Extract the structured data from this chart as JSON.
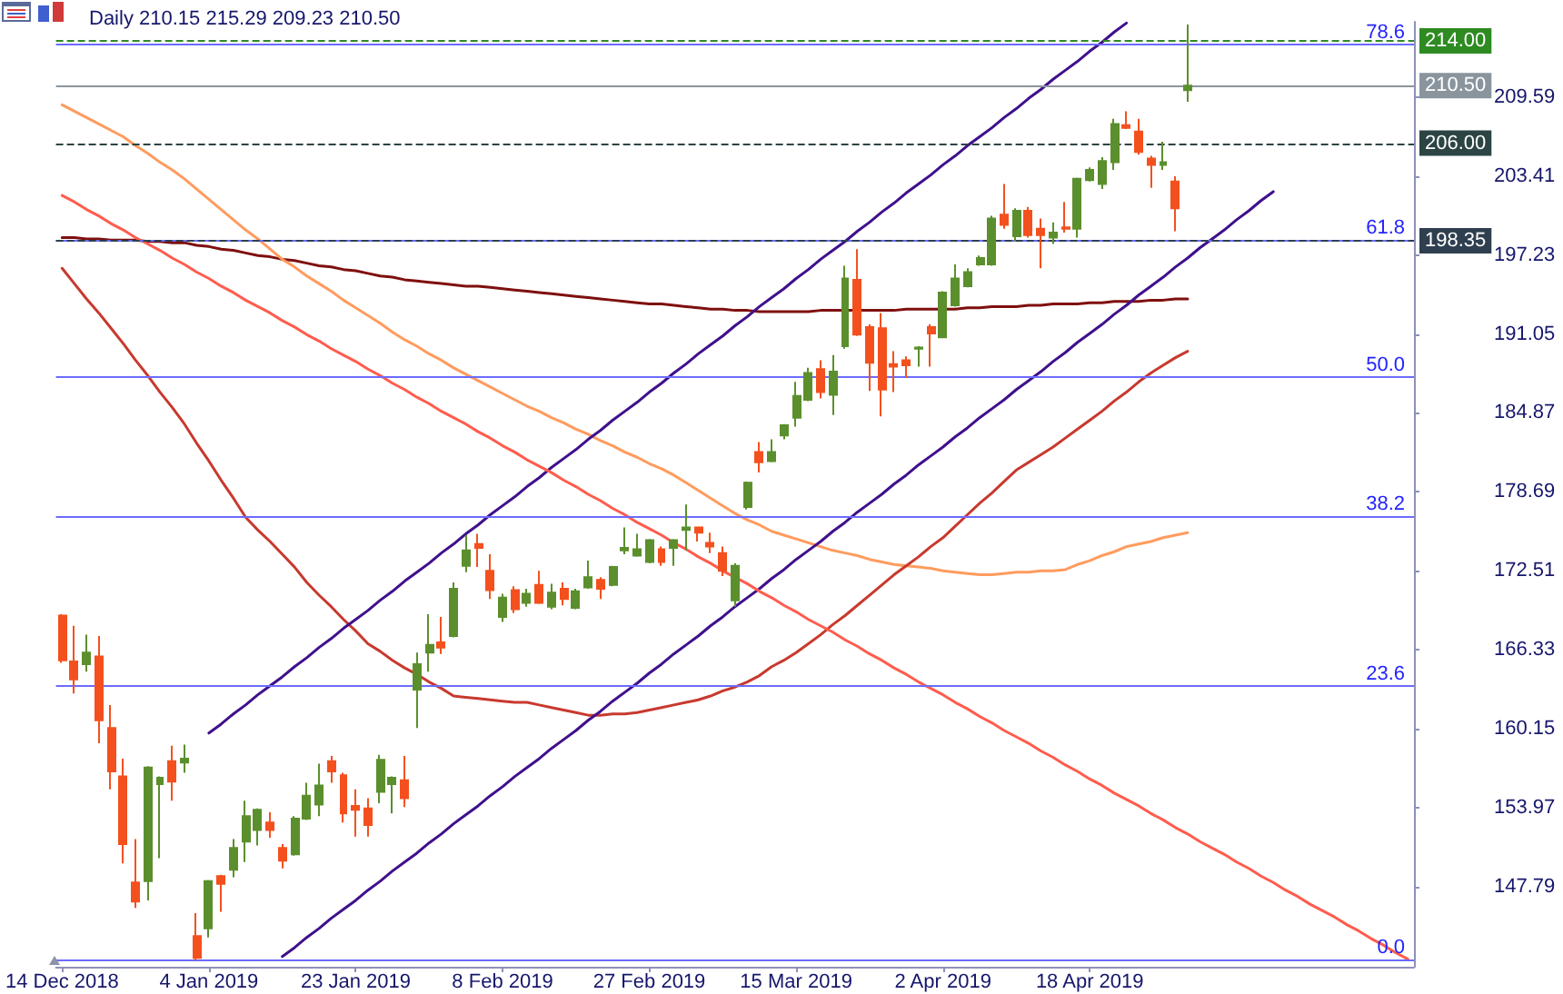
{
  "chart_data": {
    "type": "candlestick",
    "title": "Daily 210.15 215.29 209.23 210.50",
    "categories": [
      "14 Dec 2018",
      null,
      null,
      null,
      null,
      null,
      null,
      null,
      null,
      null,
      null,
      null,
      "4 Jan 2019",
      null,
      null,
      null,
      null,
      null,
      null,
      null,
      null,
      null,
      null,
      null,
      "23 Jan 2019",
      null,
      null,
      null,
      null,
      null,
      null,
      null,
      null,
      null,
      null,
      null,
      "8 Feb 2019",
      null,
      null,
      null,
      null,
      null,
      null,
      null,
      null,
      null,
      null,
      null,
      "27 Feb 2019",
      null,
      null,
      null,
      null,
      null,
      null,
      null,
      null,
      null,
      null,
      null,
      "15 Mar 2019",
      null,
      null,
      null,
      null,
      null,
      null,
      null,
      null,
      null,
      null,
      null,
      "2 Apr 2019",
      null,
      null,
      null,
      null,
      null,
      null,
      null,
      null,
      null,
      null,
      null,
      "18 Apr 2019",
      null,
      null,
      null,
      null,
      null,
      null,
      null,
      null,
      null,
      null,
      null,
      null,
      null,
      null,
      null,
      null,
      null,
      null,
      null,
      null,
      null,
      null,
      null,
      null,
      null,
      null
    ],
    "series": [
      {
        "type": "candlestick",
        "ohlc": [
          [
            169.0,
            169.1,
            165.3,
            165.5
          ],
          [
            165.4,
            168.2,
            162.9,
            164.0
          ],
          [
            165.2,
            167.5,
            164.6,
            166.1
          ],
          [
            165.8,
            167.4,
            159.0,
            160.8
          ],
          [
            160.2,
            162.0,
            155.4,
            156.8
          ],
          [
            156.4,
            157.8,
            149.6,
            151.1
          ],
          [
            148.1,
            151.5,
            146.1,
            146.6
          ],
          [
            148.2,
            157.2,
            146.7,
            157.1
          ],
          [
            155.8,
            156.4,
            150.0,
            156.3
          ],
          [
            157.6,
            158.8,
            154.5,
            156.0
          ],
          [
            157.5,
            158.9,
            156.7,
            157.8
          ],
          [
            143.9,
            145.7,
            142.0,
            142.2
          ],
          [
            144.5,
            148.3,
            143.8,
            148.2
          ],
          [
            148.6,
            148.7,
            145.8,
            148.0
          ],
          [
            149.1,
            151.5,
            148.5,
            150.8
          ],
          [
            151.3,
            154.5,
            149.7,
            153.3
          ],
          [
            152.2,
            153.9,
            151.0,
            153.8
          ],
          [
            152.8,
            153.6,
            151.6,
            152.2
          ],
          [
            150.8,
            151.1,
            149.2,
            149.8
          ],
          [
            150.3,
            153.3,
            150.2,
            153.1
          ],
          [
            153.1,
            155.9,
            153.0,
            154.9
          ],
          [
            154.2,
            157.4,
            153.3,
            155.7
          ],
          [
            157.6,
            158.0,
            155.9,
            156.8
          ],
          [
            156.5,
            156.7,
            152.8,
            153.5
          ],
          [
            154.1,
            155.4,
            151.7,
            153.8
          ],
          [
            153.9,
            154.7,
            151.7,
            152.6
          ],
          [
            155.2,
            158.1,
            154.3,
            157.7
          ],
          [
            155.8,
            156.4,
            153.5,
            156.3
          ],
          [
            156.1,
            158.0,
            154.0,
            154.7
          ],
          [
            163.2,
            166.1,
            160.2,
            165.2
          ],
          [
            166.1,
            169.1,
            164.6,
            166.7
          ],
          [
            166.9,
            168.9,
            166.0,
            166.5
          ],
          [
            167.4,
            171.6,
            167.3,
            171.1
          ],
          [
            172.9,
            175.3,
            172.4,
            174.1
          ],
          [
            174.6,
            175.4,
            172.8,
            174.3
          ],
          [
            172.5,
            173.8,
            170.3,
            171.0
          ],
          [
            168.9,
            170.7,
            168.5,
            170.4
          ],
          [
            171.0,
            171.3,
            169.2,
            169.5
          ],
          [
            170.0,
            171.1,
            169.7,
            170.7
          ],
          [
            171.4,
            172.5,
            169.9,
            170.0
          ],
          [
            169.7,
            171.5,
            169.5,
            170.8
          ],
          [
            171.1,
            171.6,
            169.8,
            170.3
          ],
          [
            169.6,
            171.1,
            169.5,
            170.9
          ],
          [
            171.2,
            173.3,
            171.1,
            172.0
          ],
          [
            171.8,
            172.0,
            170.3,
            171.1
          ],
          [
            171.4,
            172.9,
            171.3,
            172.8
          ],
          [
            174.1,
            175.9,
            173.8,
            174.3
          ],
          [
            173.7,
            175.4,
            173.6,
            174.2
          ],
          [
            173.2,
            175.0,
            173.1,
            174.9
          ],
          [
            174.2,
            174.4,
            172.9,
            173.2
          ],
          [
            174.3,
            175.0,
            172.9,
            174.9
          ],
          [
            175.7,
            177.7,
            174.1,
            175.9
          ],
          [
            175.9,
            175.9,
            174.8,
            175.5
          ],
          [
            174.7,
            175.5,
            173.9,
            174.4
          ],
          [
            173.9,
            174.4,
            172.1,
            172.5
          ],
          [
            170.2,
            173.1,
            169.7,
            172.9
          ],
          [
            177.5,
            179.5,
            177.3,
            179.4
          ],
          [
            181.8,
            182.6,
            180.2,
            181.0
          ],
          [
            181.1,
            182.8,
            181.0,
            181.8
          ],
          [
            183.1,
            184.0,
            182.8,
            183.9
          ],
          [
            184.5,
            187.3,
            183.8,
            186.2
          ],
          [
            185.9,
            188.4,
            185.8,
            188.0
          ],
          [
            188.3,
            189.0,
            186.0,
            186.5
          ],
          [
            186.3,
            189.4,
            184.7,
            188.1
          ],
          [
            190.1,
            196.4,
            189.9,
            195.4
          ],
          [
            195.3,
            197.7,
            190.9,
            191.0
          ],
          [
            191.6,
            191.8,
            186.6,
            188.8
          ],
          [
            191.5,
            192.7,
            184.6,
            186.7
          ],
          [
            188.7,
            189.7,
            186.5,
            188.5
          ],
          [
            189.0,
            189.3,
            187.6,
            188.6
          ],
          [
            189.9,
            190.1,
            188.5,
            190.0
          ],
          [
            191.6,
            191.8,
            188.5,
            191.1
          ],
          [
            190.8,
            194.4,
            190.8,
            194.3
          ],
          [
            193.3,
            196.5,
            193.2,
            195.4
          ],
          [
            194.8,
            196.2,
            194.7,
            195.9
          ],
          [
            196.5,
            197.2,
            196.4,
            197.0
          ],
          [
            196.5,
            200.3,
            196.4,
            200.1
          ],
          [
            200.4,
            202.8,
            199.3,
            199.6
          ],
          [
            198.7,
            200.9,
            198.3,
            200.7
          ],
          [
            200.7,
            201.0,
            198.6,
            198.8
          ],
          [
            199.3,
            200.1,
            196.2,
            198.8
          ],
          [
            198.6,
            199.8,
            198.1,
            199.0
          ],
          [
            199.4,
            201.4,
            199.0,
            199.3
          ],
          [
            199.3,
            203.3,
            198.6,
            203.2
          ],
          [
            203.1,
            204.1,
            203.0,
            203.9
          ],
          [
            202.8,
            204.9,
            202.4,
            204.6
          ],
          [
            204.5,
            207.9,
            203.9,
            207.5
          ],
          [
            207.4,
            208.5,
            207.1,
            207.2
          ],
          [
            206.9,
            207.9,
            205.1,
            205.3
          ],
          [
            204.8,
            205.0,
            202.5,
            204.3
          ],
          [
            204.3,
            206.1,
            203.9,
            204.5
          ],
          [
            203.0,
            203.4,
            199.1,
            200.9
          ],
          [
            210.15,
            215.29,
            209.23,
            210.5
          ],
          null,
          null,
          null,
          null,
          null,
          null,
          null,
          null,
          null,
          null,
          null,
          null,
          null,
          null,
          null,
          null,
          null,
          null
        ],
        "colors": [
          "#f4501e",
          "#f4501e",
          "#5b8f2d",
          "#f4501e",
          "#f4501e",
          "#f4501e",
          "#f4501e",
          "#5b8f2d",
          "#5b8f2d",
          "#f4501e",
          "#5b8f2d",
          "#f4501e",
          "#5b8f2d",
          "#f4501e",
          "#5b8f2d",
          "#5b8f2d",
          "#5b8f2d",
          "#f4501e",
          "#f4501e",
          "#5b8f2d",
          "#5b8f2d",
          "#5b8f2d",
          "#f4501e",
          "#f4501e",
          "#f4501e",
          "#f4501e",
          "#5b8f2d",
          "#5b8f2d",
          "#f4501e",
          "#5b8f2d",
          "#5b8f2d",
          "#f4501e",
          "#5b8f2d",
          "#5b8f2d",
          "#f4501e",
          "#f4501e",
          "#5b8f2d",
          "#f4501e",
          "#5b8f2d",
          "#f4501e",
          "#5b8f2d",
          "#f4501e",
          "#5b8f2d",
          "#5b8f2d",
          "#f4501e",
          "#5b8f2d",
          "#5b8f2d",
          "#5b8f2d",
          "#5b8f2d",
          "#f4501e",
          "#5b8f2d",
          "#5b8f2d",
          "#f4501e",
          "#f4501e",
          "#f4501e",
          "#5b8f2d",
          "#5b8f2d",
          "#f4501e",
          "#5b8f2d",
          "#5b8f2d",
          "#5b8f2d",
          "#5b8f2d",
          "#f4501e",
          "#5b8f2d",
          "#5b8f2d",
          "#f4501e",
          "#f4501e",
          "#f4501e",
          "#f4501e",
          "#f4501e",
          "#5b8f2d",
          "#f4501e",
          "#5b8f2d",
          "#5b8f2d",
          "#5b8f2d",
          "#5b8f2d",
          "#5b8f2d",
          "#f4501e",
          "#5b8f2d",
          "#f4501e",
          "#f4501e",
          "#5b8f2d",
          "#f4501e",
          "#5b8f2d",
          "#5b8f2d",
          "#5b8f2d",
          "#5b8f2d",
          "#f4501e",
          "#f4501e",
          "#f4501e",
          "#5b8f2d",
          "#f4501e",
          "#5b8f2d",
          null,
          null,
          null,
          null,
          null,
          null,
          null,
          null,
          null,
          null,
          null,
          null,
          null,
          null,
          null,
          null,
          null,
          null
        ]
      },
      {
        "type": "line",
        "color": "#7f0f0f",
        "values": [
          198.6,
          198.6,
          198.5,
          198.5,
          198.4,
          198.4,
          198.4,
          198.3,
          198.3,
          198.2,
          198.2,
          198.0,
          197.9,
          197.7,
          197.6,
          197.4,
          197.2,
          197.1,
          196.9,
          196.8,
          196.6,
          196.4,
          196.3,
          196.1,
          196.0,
          195.8,
          195.6,
          195.5,
          195.3,
          195.2,
          195.1,
          195.0,
          194.9,
          194.8,
          194.8,
          194.7,
          194.6,
          194.5,
          194.4,
          194.3,
          194.2,
          194.1,
          194.0,
          193.9,
          193.8,
          193.7,
          193.6,
          193.5,
          193.4,
          193.4,
          193.3,
          193.2,
          193.1,
          193.0,
          193.0,
          192.9,
          192.9,
          192.8,
          192.8,
          192.8,
          192.8,
          192.8,
          192.9,
          192.9,
          192.9,
          192.9,
          192.9,
          192.9,
          192.9,
          193.0,
          193.0,
          193.0,
          193.0,
          193.0,
          193.1,
          193.1,
          193.2,
          193.2,
          193.2,
          193.3,
          193.3,
          193.4,
          193.4,
          193.4,
          193.5,
          193.5,
          193.6,
          193.6,
          193.6,
          193.7,
          193.7,
          193.8,
          193.8,
          null,
          null,
          null,
          null,
          null,
          null,
          null,
          null,
          null,
          null,
          null,
          null,
          null,
          null,
          null,
          null,
          null,
          null
        ]
      },
      {
        "type": "line",
        "color": "#ff9b5e",
        "values": [
          209.0,
          208.5,
          208.0,
          207.5,
          207.0,
          206.5,
          205.8,
          205.2,
          204.5,
          203.9,
          203.2,
          202.4,
          201.6,
          200.8,
          200.0,
          199.2,
          198.5,
          197.7,
          196.9,
          196.3,
          195.6,
          195.0,
          194.4,
          193.7,
          193.1,
          192.5,
          191.9,
          191.2,
          190.6,
          190.1,
          189.5,
          189.0,
          188.4,
          187.9,
          187.4,
          186.9,
          186.4,
          185.9,
          185.4,
          185.0,
          184.5,
          184.1,
          183.6,
          183.2,
          182.7,
          182.3,
          181.8,
          181.4,
          180.9,
          180.5,
          180.0,
          179.4,
          178.8,
          178.2,
          177.6,
          177.0,
          176.5,
          176.1,
          175.6,
          175.3,
          175.0,
          174.7,
          174.4,
          174.1,
          173.9,
          173.7,
          173.4,
          173.2,
          173.0,
          172.9,
          172.8,
          172.7,
          172.5,
          172.4,
          172.3,
          172.2,
          172.2,
          172.3,
          172.4,
          172.4,
          172.5,
          172.5,
          172.6,
          173.0,
          173.3,
          173.7,
          174.0,
          174.4,
          174.6,
          174.8,
          175.1,
          175.3,
          175.5,
          null,
          null,
          null,
          null,
          null,
          null,
          null,
          null,
          null,
          null,
          null,
          null,
          null,
          null,
          null,
          null,
          null,
          null
        ]
      },
      {
        "type": "line",
        "color": "#c8392e",
        "values": [
          196.2,
          195.0,
          193.8,
          192.7,
          191.5,
          190.3,
          189.0,
          187.8,
          186.5,
          185.3,
          184.0,
          182.5,
          181.1,
          179.6,
          178.2,
          176.7,
          175.7,
          174.8,
          173.8,
          172.8,
          171.6,
          170.6,
          169.7,
          168.7,
          167.8,
          166.8,
          166.2,
          165.5,
          164.9,
          164.4,
          163.8,
          163.3,
          162.7,
          162.6,
          162.5,
          162.4,
          162.3,
          162.2,
          162.2,
          162.0,
          161.8,
          161.6,
          161.4,
          161.2,
          161.2,
          161.3,
          161.3,
          161.4,
          161.6,
          161.8,
          162.0,
          162.2,
          162.4,
          162.7,
          163.1,
          163.4,
          163.8,
          164.3,
          165.0,
          165.5,
          166.1,
          166.8,
          167.5,
          168.3,
          169.0,
          169.8,
          170.6,
          171.4,
          172.2,
          172.9,
          173.6,
          174.4,
          175.1,
          176.0,
          176.9,
          177.8,
          178.6,
          179.5,
          180.4,
          181.0,
          181.6,
          182.2,
          182.9,
          183.6,
          184.3,
          185.0,
          185.8,
          186.5,
          187.3,
          188.0,
          188.6,
          189.2,
          189.7,
          null,
          null,
          null,
          null,
          null,
          null,
          null,
          null,
          null,
          null,
          null,
          null,
          null,
          null,
          null,
          null,
          null,
          null
        ]
      },
      {
        "type": "line",
        "color": "#40108c",
        "values": [
          null,
          null,
          null,
          null,
          null,
          null,
          null,
          null,
          null,
          null,
          null,
          null,
          159.8,
          160.5,
          161.3,
          162.0,
          162.8,
          163.5,
          164.2,
          165.0,
          165.7,
          166.5,
          167.2,
          168.0,
          168.7,
          169.4,
          170.2,
          170.9,
          171.7,
          172.4,
          173.1,
          173.9,
          174.6,
          175.4,
          176.1,
          176.9,
          177.6,
          178.3,
          179.1,
          179.8,
          180.6,
          181.3,
          182.0,
          182.8,
          183.5,
          184.3,
          185.0,
          185.7,
          186.5,
          187.2,
          188.0,
          188.7,
          189.5,
          190.2,
          190.9,
          191.7,
          192.4,
          193.2,
          193.9,
          194.6,
          195.4,
          196.1,
          196.9,
          197.6,
          198.3,
          199.1,
          199.8,
          200.6,
          201.3,
          202.1,
          202.8,
          203.5,
          204.3,
          205.0,
          205.8,
          206.5,
          207.2,
          208.0,
          208.7,
          209.5,
          210.2,
          211.0,
          211.7,
          212.4,
          213.2,
          213.9,
          214.7,
          215.4,
          null,
          null,
          null,
          null,
          null,
          null,
          null,
          null,
          null,
          null,
          null,
          null,
          null,
          null,
          null,
          null,
          null,
          null,
          null,
          null,
          null,
          null,
          null
        ]
      },
      {
        "type": "line",
        "color": "#40108c",
        "values": [
          null,
          null,
          null,
          null,
          null,
          null,
          null,
          null,
          null,
          null,
          null,
          null,
          null,
          null,
          null,
          null,
          null,
          null,
          142.3,
          143.0,
          143.8,
          144.5,
          145.3,
          146.0,
          146.7,
          147.5,
          148.2,
          149.0,
          149.7,
          150.4,
          151.2,
          151.9,
          152.7,
          153.4,
          154.1,
          154.9,
          155.6,
          156.4,
          157.1,
          157.8,
          158.6,
          159.3,
          160.0,
          160.8,
          161.5,
          162.3,
          163.0,
          163.7,
          164.5,
          165.2,
          166.0,
          166.7,
          167.4,
          168.2,
          168.9,
          169.7,
          170.4,
          171.1,
          171.9,
          172.6,
          173.4,
          174.1,
          174.8,
          175.6,
          176.3,
          177.1,
          177.8,
          178.5,
          179.3,
          180.0,
          180.8,
          181.5,
          182.2,
          183.0,
          183.7,
          184.5,
          185.2,
          185.9,
          186.7,
          187.4,
          188.1,
          188.9,
          189.6,
          190.4,
          191.1,
          191.8,
          192.6,
          193.3,
          194.1,
          194.8,
          195.5,
          196.3,
          197.0,
          197.8,
          198.5,
          199.2,
          200.0,
          200.7,
          201.5,
          202.2,
          null,
          null,
          null,
          null,
          null,
          null,
          null,
          null,
          null,
          null,
          null
        ]
      },
      {
        "type": "line",
        "color": "#ff5c4d",
        "values": [
          201.9,
          201.4,
          200.8,
          200.3,
          199.7,
          199.2,
          198.6,
          198.1,
          197.6,
          197.0,
          196.5,
          195.9,
          195.4,
          194.8,
          194.3,
          193.7,
          193.2,
          192.7,
          192.1,
          191.6,
          191.0,
          190.5,
          189.9,
          189.4,
          188.9,
          188.3,
          187.8,
          187.2,
          186.7,
          186.1,
          185.6,
          185.0,
          184.5,
          184.0,
          183.4,
          182.9,
          182.3,
          181.8,
          181.2,
          180.7,
          180.2,
          179.6,
          179.1,
          178.5,
          178.0,
          177.4,
          176.9,
          176.3,
          175.8,
          175.3,
          174.7,
          174.2,
          173.6,
          173.1,
          172.5,
          172.0,
          171.5,
          170.9,
          170.4,
          169.8,
          169.3,
          168.7,
          168.2,
          167.7,
          167.1,
          166.6,
          166.0,
          165.5,
          164.9,
          164.4,
          163.8,
          163.3,
          162.8,
          162.2,
          161.7,
          161.1,
          160.6,
          160.0,
          159.5,
          159.0,
          158.4,
          157.9,
          157.3,
          156.8,
          156.2,
          155.7,
          155.1,
          154.6,
          154.1,
          153.5,
          153.0,
          152.4,
          151.9,
          151.3,
          150.8,
          150.3,
          149.7,
          149.2,
          148.6,
          148.1,
          147.5,
          147.0,
          146.4,
          145.9,
          145.4,
          144.8,
          144.3,
          143.7,
          143.2,
          142.6,
          142.1
        ]
      }
    ],
    "ylim": [
      141.5,
      215.5
    ],
    "yticks": [
      147.79,
      153.97,
      160.15,
      166.33,
      172.51,
      178.69,
      184.87,
      191.05,
      197.23,
      203.41,
      209.59
    ],
    "ref_lines": [
      {
        "axis": "y",
        "value": 213.7,
        "color": "#6b6bff"
      },
      {
        "axis": "y",
        "value": 198.4,
        "color": "#6b6bff"
      },
      {
        "axis": "y",
        "value": 187.7,
        "color": "#6b6bff"
      },
      {
        "axis": "y",
        "value": 176.8,
        "color": "#6b6bff"
      },
      {
        "axis": "y",
        "value": 163.5,
        "color": "#6b6bff"
      },
      {
        "axis": "y",
        "value": 142.1,
        "color": "#6b6bff"
      },
      {
        "axis": "y",
        "value": 214.0,
        "label": "214.00",
        "color": "#2e8b22",
        "line_style": "dashed"
      },
      {
        "axis": "y",
        "value": 210.5,
        "label": "210.50",
        "color": "#8a949c",
        "line_style": "solid"
      },
      {
        "axis": "y",
        "value": 206.0,
        "label": "206.00",
        "color": "#2c4444",
        "line_style": "dashed"
      },
      {
        "axis": "y",
        "value": 198.35,
        "label": "198.35",
        "color": "#2f3f4f",
        "line_style": "dashed"
      }
    ],
    "annotations": [
      {
        "text": "78.6",
        "y": 213.7
      },
      {
        "text": "61.8",
        "y": 198.4
      },
      {
        "text": "50.0",
        "y": 187.7
      },
      {
        "text": "38.2",
        "y": 176.8
      },
      {
        "text": "23.6",
        "y": 163.5
      },
      {
        "text": "0.0",
        "y": 142.1
      }
    ]
  }
}
